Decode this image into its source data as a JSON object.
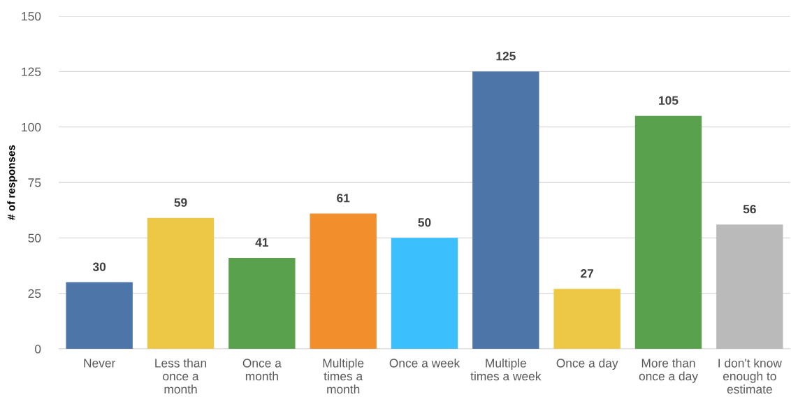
{
  "chart_data": {
    "type": "bar",
    "ylabel": "# of responses",
    "categories": [
      "Never",
      "Less than\nonce a\nmonth",
      "Once a\nmonth",
      "Multiple\ntimes a\nmonth",
      "Once a week",
      "Multiple\ntimes a week",
      "Once a day",
      "More than\nonce a day",
      "I don't know\nenough to\nestimate"
    ],
    "values": [
      30,
      59,
      41,
      61,
      50,
      125,
      27,
      105,
      56
    ],
    "colors": [
      "#4e75a8",
      "#ecc846",
      "#5aa14e",
      "#f28e2c",
      "#3bbffd",
      "#4e75a8",
      "#ecc846",
      "#5aa14e",
      "#bababa"
    ],
    "ylim": [
      0,
      150
    ],
    "yticks": [
      0,
      25,
      50,
      75,
      100,
      125,
      150
    ],
    "grid": "y",
    "data_labels": true
  }
}
